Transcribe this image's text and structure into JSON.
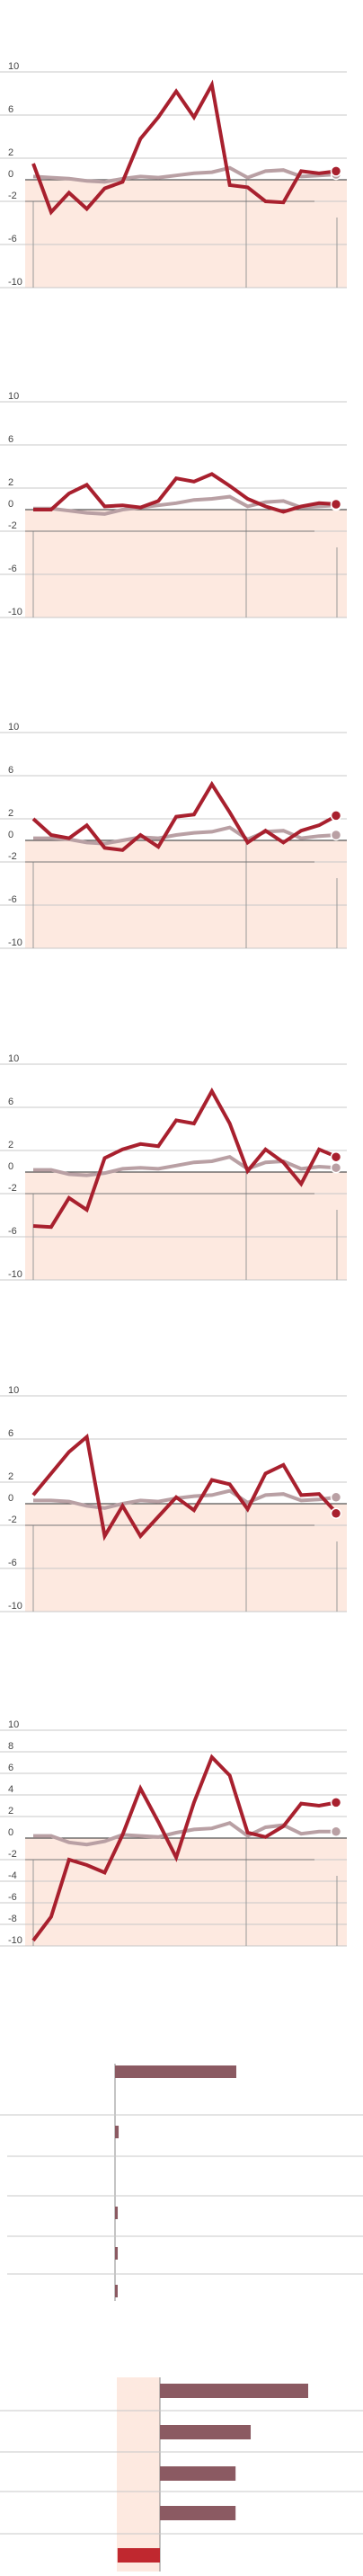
{
  "colors": {
    "primary": "#a8202e",
    "secondary": "#b9a0a4",
    "negative_zone": "#fde9e0",
    "bar": "#8b5a62",
    "bar_highlight": "#c0282f",
    "grid": "#c8c8c8",
    "axis": "#555555"
  },
  "chart_data": [
    {
      "type": "line",
      "ylim": [
        -10,
        10
      ],
      "y_ticks": [
        "10",
        "6",
        "2",
        "0",
        "-2",
        "-6",
        "-10"
      ],
      "series": [
        {
          "values": [
            1.5,
            -3,
            -1.2,
            -2.7,
            -0.8,
            -0.2,
            3.8,
            5.8,
            8.2,
            5.8,
            8.8,
            -0.5,
            -0.7,
            -2,
            -2.1,
            0.8,
            0.6,
            0.8
          ]
        },
        {
          "values": [
            0.3,
            0.2,
            0.1,
            -0.1,
            -0.2,
            0.1,
            0.3,
            0.2,
            0.4,
            0.6,
            0.7,
            1.1,
            0.2,
            0.8,
            0.9,
            0.3,
            0.4,
            0.5
          ]
        }
      ]
    },
    {
      "type": "line",
      "ylim": [
        -10,
        10
      ],
      "y_ticks": [
        "10",
        "6",
        "2",
        "0",
        "-2",
        "-6",
        "-10"
      ],
      "series": [
        {
          "values": [
            0,
            0,
            1.5,
            2.3,
            0.3,
            0.4,
            0.2,
            0.8,
            2.9,
            2.6,
            3.3,
            2.2,
            1,
            0.3,
            -0.2,
            0.3,
            0.6,
            0.5
          ]
        },
        {
          "values": [
            0.1,
            0.1,
            -0.1,
            -0.3,
            -0.4,
            0,
            0.2,
            0.4,
            0.6,
            0.9,
            1,
            1.2,
            0.3,
            0.7,
            0.8,
            0.2,
            0.3,
            0.4
          ]
        }
      ]
    },
    {
      "type": "line",
      "ylim": [
        -10,
        10
      ],
      "y_ticks": [
        "10",
        "6",
        "2",
        "0",
        "-2",
        "-6",
        "-10"
      ],
      "series": [
        {
          "values": [
            2,
            0.5,
            0.2,
            1.4,
            -0.7,
            -0.9,
            0.5,
            -0.6,
            2.2,
            2.4,
            5.2,
            2.6,
            -0.2,
            0.9,
            -0.2,
            0.9,
            1.4,
            2.3
          ]
        },
        {
          "values": [
            0.2,
            0.2,
            0.1,
            -0.2,
            -0.3,
            0,
            0.3,
            0.2,
            0.5,
            0.7,
            0.8,
            1.2,
            0.1,
            0.8,
            0.9,
            0.2,
            0.4,
            0.5
          ]
        }
      ]
    },
    {
      "type": "line",
      "ylim": [
        -10,
        10
      ],
      "y_ticks": [
        "10",
        "6",
        "2",
        "0",
        "-2",
        "-6",
        "-10"
      ],
      "series": [
        {
          "values": [
            -5,
            -5.1,
            -2.4,
            -3.5,
            1.3,
            2.1,
            2.6,
            2.4,
            4.8,
            4.5,
            7.5,
            4.5,
            0.1,
            2.1,
            0.9,
            -1.1,
            2.1,
            1.4
          ]
        },
        {
          "values": [
            0.2,
            0.2,
            -0.2,
            -0.3,
            -0.1,
            0.3,
            0.4,
            0.3,
            0.6,
            0.9,
            1,
            1.4,
            0.3,
            0.9,
            1,
            0.3,
            0.5,
            0.4
          ]
        }
      ]
    },
    {
      "type": "line",
      "ylim": [
        -10,
        10
      ],
      "y_ticks": [
        "10",
        "6",
        "2",
        "0",
        "-2",
        "-6",
        "-10"
      ],
      "series": [
        {
          "values": [
            0.8,
            2.8,
            4.8,
            6.2,
            -3,
            -0.2,
            -3,
            -1.2,
            0.6,
            -0.6,
            2.2,
            1.8,
            -0.5,
            2.8,
            3.6,
            0.8,
            0.9,
            -0.9
          ]
        },
        {
          "values": [
            0.3,
            0.3,
            0.2,
            -0.2,
            -0.4,
            0,
            0.3,
            0.2,
            0.5,
            0.7,
            0.8,
            1.2,
            0.1,
            0.8,
            0.9,
            0.3,
            0.4,
            0.6
          ]
        }
      ]
    },
    {
      "type": "line",
      "ylim": [
        -10,
        10
      ],
      "y_ticks": [
        "10",
        "8",
        "6",
        "4",
        "2",
        "0",
        "-2",
        "-4",
        "-6",
        "-8",
        "-10"
      ],
      "series": [
        {
          "values": [
            -9.5,
            -7.3,
            -2,
            -2.5,
            -3.2,
            0.3,
            4.6,
            1.5,
            -1.8,
            3.3,
            7.5,
            5.8,
            0.5,
            0.1,
            1.1,
            3.2,
            3,
            3.3
          ]
        },
        {
          "values": [
            0.2,
            0.2,
            -0.4,
            -0.6,
            -0.3,
            0.3,
            0.2,
            0.1,
            0.5,
            0.8,
            0.9,
            1.4,
            0.2,
            1,
            1.2,
            0.4,
            0.6,
            0.6
          ]
        }
      ]
    },
    {
      "type": "bar",
      "orientation": "horizontal",
      "values": [
        40,
        1.2,
        0,
        0.9,
        0.9,
        0.6
      ]
    },
    {
      "type": "bar",
      "orientation": "horizontal",
      "values": [
        49,
        30,
        25,
        25,
        -14
      ]
    }
  ]
}
